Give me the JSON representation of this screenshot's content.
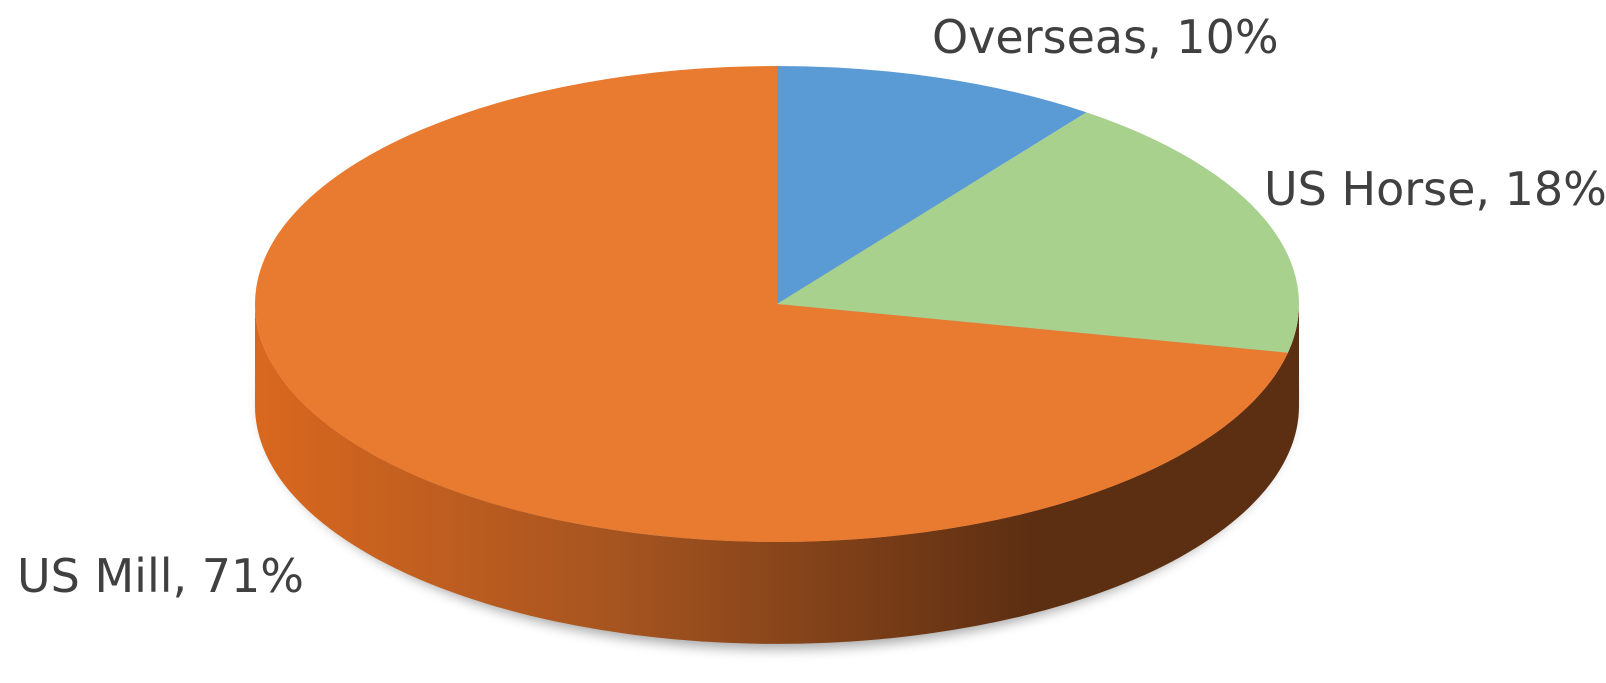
{
  "chart_data": {
    "type": "pie",
    "style": "3d",
    "legend": "none",
    "slices": [
      {
        "name": "Overseas",
        "value": 10,
        "pct_label": "10%",
        "color": "#5B9BD5"
      },
      {
        "name": "US Horse",
        "value": 18,
        "pct_label": "18%",
        "color": "#A9D18E"
      },
      {
        "name": "US Mill",
        "value": 71,
        "pct_label": "71%",
        "color": "#E97B31"
      }
    ],
    "side_colors": {
      "light": "#D9681F",
      "dark": "#5C2E12"
    }
  }
}
